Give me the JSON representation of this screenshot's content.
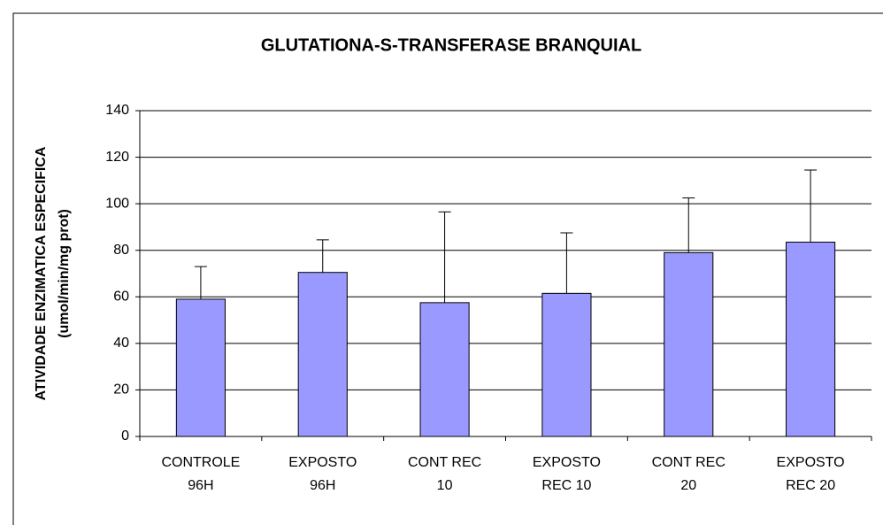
{
  "chart_data": {
    "type": "bar",
    "title": "GLUTATIONA-S-TRANSFERASE BRANQUIAL",
    "y_label": [
      "ATIVIDADE ENZIMATICA ESPECIFICA",
      "(umol/min/mg prot)"
    ],
    "categories": [
      [
        "CONTROLE",
        "96H"
      ],
      [
        "EXPOSTO",
        "96H"
      ],
      [
        "CONT REC",
        "10"
      ],
      [
        "EXPOSTO",
        "REC 10"
      ],
      [
        "CONT REC",
        "20"
      ],
      [
        "EXPOSTO",
        "REC 20"
      ]
    ],
    "values": [
      59,
      70.5,
      57.5,
      61.5,
      79,
      83.5
    ],
    "errors": [
      14,
      14,
      39,
      26,
      23.5,
      31
    ],
    "color": "#9999ff",
    "ylim": [
      0,
      140
    ],
    "yticks": [
      0,
      20,
      40,
      60,
      80,
      100,
      120,
      140
    ],
    "grid": true
  }
}
